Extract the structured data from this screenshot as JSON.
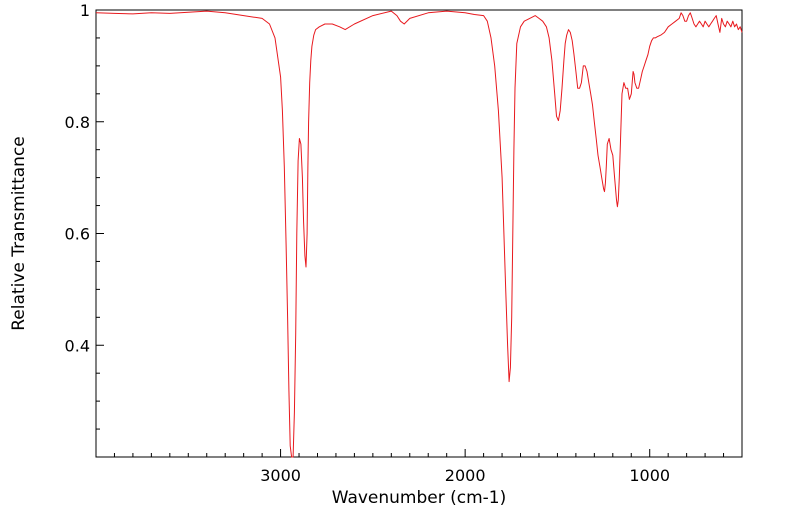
{
  "chart_data": {
    "type": "line",
    "title": "",
    "xlabel": "Wavenumber (cm-1)",
    "ylabel": "Relative Transmittance",
    "xlim": [
      4000,
      500
    ],
    "x_reversed": true,
    "ylim": [
      0.2,
      1.0
    ],
    "xticks": [
      {
        "value": 3000,
        "label": "3000"
      },
      {
        "value": 2000,
        "label": "2000"
      },
      {
        "value": 1000,
        "label": "1000"
      }
    ],
    "yticks": [
      {
        "value": 1.0,
        "label": "1"
      },
      {
        "value": 0.8,
        "label": "0.8"
      },
      {
        "value": 0.6,
        "label": "0.6"
      },
      {
        "value": 0.4,
        "label": "0.4"
      }
    ],
    "grid": false,
    "legend": "none",
    "line_color": "#e8191e",
    "series": [
      {
        "x": [
          4000,
          3900,
          3800,
          3700,
          3600,
          3500,
          3400,
          3300,
          3200,
          3100,
          3060,
          3030,
          3000,
          2990,
          2980,
          2970,
          2962,
          2955,
          2948,
          2940,
          2932,
          2925,
          2918,
          2912,
          2905,
          2898,
          2890,
          2882,
          2875,
          2868,
          2862,
          2856,
          2852,
          2848,
          2842,
          2836,
          2830,
          2820,
          2810,
          2790,
          2760,
          2720,
          2680,
          2650,
          2600,
          2500,
          2400,
          2370,
          2350,
          2330,
          2300,
          2200,
          2100,
          2000,
          1950,
          1900,
          1880,
          1860,
          1840,
          1820,
          1800,
          1790,
          1780,
          1770,
          1762,
          1755,
          1748,
          1742,
          1736,
          1730,
          1720,
          1700,
          1680,
          1650,
          1620,
          1600,
          1580,
          1560,
          1545,
          1530,
          1515,
          1505,
          1495,
          1485,
          1475,
          1465,
          1458,
          1450,
          1440,
          1430,
          1420,
          1410,
          1400,
          1390,
          1380,
          1370,
          1360,
          1350,
          1340,
          1330,
          1320,
          1310,
          1300,
          1290,
          1280,
          1270,
          1260,
          1250,
          1245,
          1240,
          1235,
          1230,
          1220,
          1210,
          1200,
          1190,
          1180,
          1175,
          1170,
          1165,
          1160,
          1155,
          1150,
          1140,
          1130,
          1120,
          1110,
          1100,
          1095,
          1090,
          1085,
          1080,
          1070,
          1060,
          1050,
          1040,
          1030,
          1020,
          1010,
          1000,
          990,
          980,
          970,
          960,
          940,
          920,
          900,
          880,
          860,
          840,
          830,
          820,
          810,
          800,
          790,
          780,
          770,
          760,
          750,
          740,
          730,
          720,
          710,
          700,
          690,
          680,
          670,
          660,
          650,
          640,
          630,
          620,
          610,
          600,
          590,
          580,
          570,
          560,
          550,
          540,
          530,
          520,
          510,
          500
        ],
        "y": [
          0.995,
          0.994,
          0.993,
          0.995,
          0.994,
          0.996,
          0.998,
          0.995,
          0.99,
          0.985,
          0.975,
          0.95,
          0.88,
          0.82,
          0.72,
          0.58,
          0.45,
          0.32,
          0.22,
          0.18,
          0.2,
          0.28,
          0.42,
          0.6,
          0.73,
          0.77,
          0.76,
          0.7,
          0.62,
          0.56,
          0.54,
          0.6,
          0.72,
          0.8,
          0.87,
          0.91,
          0.935,
          0.955,
          0.965,
          0.97,
          0.975,
          0.975,
          0.97,
          0.965,
          0.975,
          0.99,
          0.998,
          0.99,
          0.98,
          0.975,
          0.985,
          0.995,
          0.998,
          0.995,
          0.992,
          0.99,
          0.98,
          0.95,
          0.9,
          0.82,
          0.7,
          0.6,
          0.5,
          0.4,
          0.335,
          0.36,
          0.45,
          0.6,
          0.75,
          0.86,
          0.94,
          0.97,
          0.98,
          0.985,
          0.99,
          0.985,
          0.98,
          0.97,
          0.95,
          0.91,
          0.85,
          0.81,
          0.802,
          0.82,
          0.86,
          0.91,
          0.94,
          0.955,
          0.965,
          0.96,
          0.945,
          0.92,
          0.89,
          0.86,
          0.86,
          0.87,
          0.9,
          0.9,
          0.89,
          0.87,
          0.85,
          0.83,
          0.8,
          0.77,
          0.74,
          0.72,
          0.7,
          0.68,
          0.675,
          0.69,
          0.72,
          0.76,
          0.77,
          0.75,
          0.74,
          0.7,
          0.66,
          0.648,
          0.66,
          0.7,
          0.75,
          0.8,
          0.85,
          0.87,
          0.86,
          0.86,
          0.84,
          0.85,
          0.87,
          0.89,
          0.885,
          0.87,
          0.86,
          0.86,
          0.875,
          0.89,
          0.9,
          0.91,
          0.92,
          0.935,
          0.945,
          0.95,
          0.95,
          0.952,
          0.955,
          0.96,
          0.97,
          0.975,
          0.98,
          0.985,
          0.995,
          0.99,
          0.98,
          0.98,
          0.99,
          0.995,
          0.985,
          0.975,
          0.97,
          0.975,
          0.98,
          0.975,
          0.97,
          0.98,
          0.975,
          0.97,
          0.975,
          0.98,
          0.985,
          0.99,
          0.975,
          0.96,
          0.985,
          0.975,
          0.97,
          0.98,
          0.975,
          0.97,
          0.98,
          0.97,
          0.975,
          0.965,
          0.97,
          0.96
        ]
      }
    ]
  }
}
